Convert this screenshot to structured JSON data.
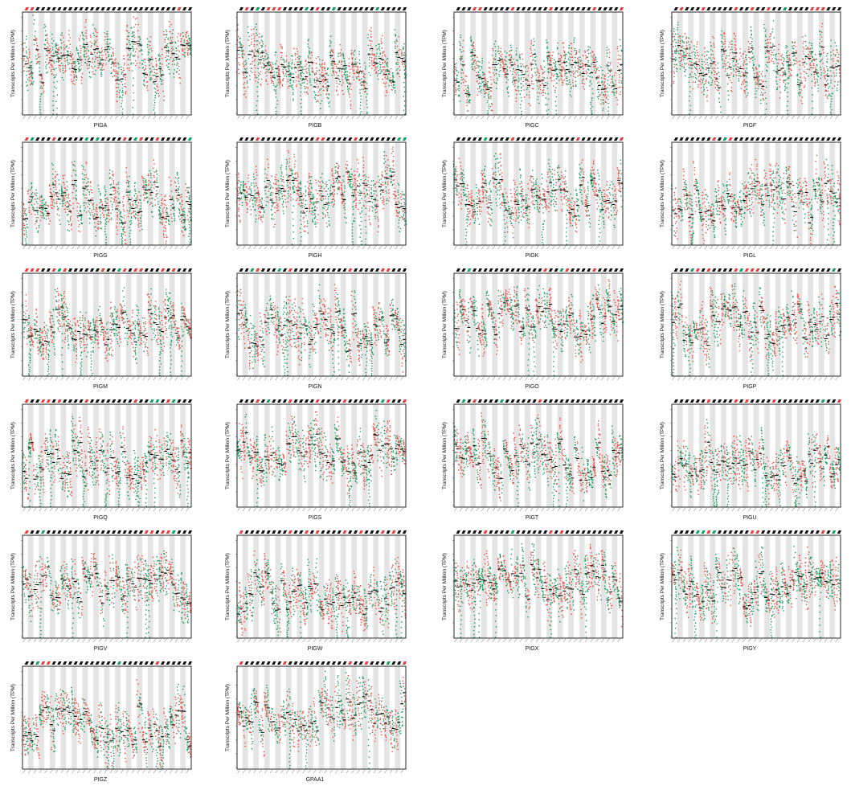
{
  "figure": {
    "y_axis_label": "Transcripts Per Million (TPM)",
    "colors": {
      "tumor": "#f0483e",
      "normal": "#0f9b5a",
      "median": "#000000",
      "band": "#e4e4e4",
      "axis": "#111111",
      "highlight_up": "#e63c3c",
      "highlight_down": "#0fa063"
    }
  },
  "chart_data": [
    {
      "type": "scatter",
      "gene": "PIGA",
      "ylabel": "Transcripts Per Million (TPM)"
    },
    {
      "type": "scatter",
      "gene": "PIGB",
      "ylabel": "Transcripts Per Million (TPM)"
    },
    {
      "type": "scatter",
      "gene": "PIGC",
      "ylabel": "Transcripts Per Million (TPM)"
    },
    {
      "type": "scatter",
      "gene": "PIGF",
      "ylabel": "Transcripts Per Million (TPM)"
    },
    {
      "type": "scatter",
      "gene": "PIGG",
      "ylabel": "Transcripts Per Million (TPM)"
    },
    {
      "type": "scatter",
      "gene": "PIGH",
      "ylabel": "Transcripts Per Million (TPM)"
    },
    {
      "type": "scatter",
      "gene": "PIGK",
      "ylabel": "Transcripts Per Million (TPM)"
    },
    {
      "type": "scatter",
      "gene": "PIGL",
      "ylabel": "Transcripts Per Million (TPM)"
    },
    {
      "type": "scatter",
      "gene": "PIGM",
      "ylabel": "Transcripts Per Million (TPM)"
    },
    {
      "type": "scatter",
      "gene": "PIGN",
      "ylabel": "Transcripts Per Million (TPM)"
    },
    {
      "type": "scatter",
      "gene": "PIGO",
      "ylabel": "Transcripts Per Million (TPM)"
    },
    {
      "type": "scatter",
      "gene": "PIGP",
      "ylabel": "Transcripts Per Million (TPM)"
    },
    {
      "type": "scatter",
      "gene": "PIGQ",
      "ylabel": "Transcripts Per Million (TPM)"
    },
    {
      "type": "scatter",
      "gene": "PIGS",
      "ylabel": "Transcripts Per Million (TPM)"
    },
    {
      "type": "scatter",
      "gene": "PIGT",
      "ylabel": "Transcripts Per Million (TPM)"
    },
    {
      "type": "scatter",
      "gene": "PIGU",
      "ylabel": "Transcripts Per Million (TPM)"
    },
    {
      "type": "scatter",
      "gene": "PIGV",
      "ylabel": "Transcripts Per Million (TPM)"
    },
    {
      "type": "scatter",
      "gene": "PIGW",
      "ylabel": "Transcripts Per Million (TPM)"
    },
    {
      "type": "scatter",
      "gene": "PIGX",
      "ylabel": "Transcripts Per Million (TPM)"
    },
    {
      "type": "scatter",
      "gene": "PIGY",
      "ylabel": "Transcripts Per Million (TPM)"
    },
    {
      "type": "scatter",
      "gene": "PIGZ",
      "ylabel": "Transcripts Per Million (TPM)"
    },
    {
      "type": "scatter",
      "gene": "GPAA1",
      "ylabel": "Transcripts Per Million (TPM)"
    }
  ]
}
